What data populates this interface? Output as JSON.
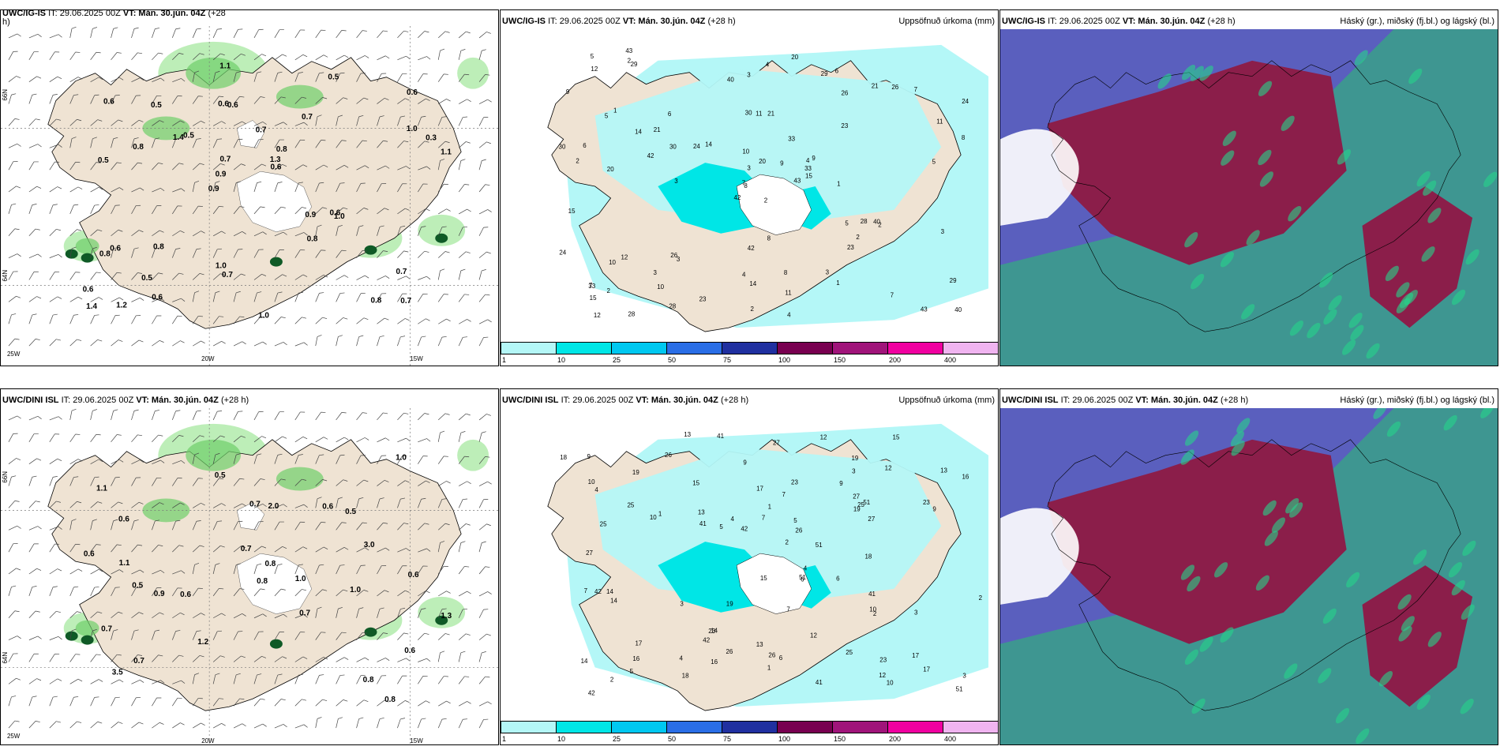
{
  "panels": {
    "top_left": {
      "title": "UWC/IG-IS",
      "it": "IT: 29.06.2025 00Z",
      "vt": "VT: Mán. 30.jún. 04Z",
      "lead": "(+28",
      "lead2": "h)"
    },
    "top_mid": {
      "title": "UWC/IG-IS",
      "it": "IT: 29.06.2025 00Z",
      "vt": "VT: Mán. 30.jún. 04Z",
      "lead": "(+28 h)",
      "right": "Uppsöfnuð úrkoma (mm)"
    },
    "top_right": {
      "title": "UWC/IG-IS",
      "it": "IT: 29.06.2025 00Z",
      "vt": "VT: Mán. 30.jún. 04Z",
      "lead": "(+28 h)",
      "right": "Háský (gr.), miðský (fj.bl.) og lágský (bl.)"
    },
    "bot_left": {
      "title": "UWC/DINI ISL",
      "it": "IT: 29.06.2025 00Z",
      "vt": "VT: Mán. 30.jún. 04Z",
      "lead": "(+28 h)"
    },
    "bot_mid": {
      "title": "UWC/DINI ISL",
      "it": "IT: 29.06.2025 00Z",
      "vt": "VT: Mán. 30.jún. 04Z",
      "lead": "(+28 h)",
      "right": "Uppsöfnuð úrkoma (mm)"
    },
    "bot_right": {
      "title": "UWC/DINI ISL",
      "it": "IT: 29.06.2025 00Z",
      "vt": "VT: Mán. 30.jún. 04Z",
      "lead": "(+28 h)",
      "right": "Háský (gr.), miðský (fj.bl.) og lágský (bl.)"
    }
  },
  "axis_labels": {
    "lat66": "66N",
    "lat64": "64N",
    "lon20": "20W",
    "lon15": "15W",
    "lon25": "25W"
  },
  "colorbar": {
    "ticks": [
      "1",
      "10",
      "25",
      "50",
      "75",
      "100",
      "150",
      "200",
      "400"
    ],
    "colors": [
      "#b4f7f7",
      "#00e6e6",
      "#00c8f0",
      "#2a6ee6",
      "#2030a0",
      "#780050",
      "#a0147a",
      "#f000a0",
      "#f0b4f0"
    ]
  },
  "top_left_values": [
    "0.7",
    "0.5",
    "0.6",
    "0.9",
    "0.7",
    "1.2",
    "0.6",
    "0.7",
    "0.6",
    "0.5",
    "0.6",
    "0.5",
    "0.6",
    "0.8",
    "1.0",
    "0.6",
    "1.1",
    "1.1",
    "0.9",
    "1.0",
    "0.9",
    "1.0",
    "0.7",
    "0.5",
    "0.5",
    "0.8",
    "0.8",
    "0.7",
    "0.6",
    "1.0",
    "1.4",
    "0.8",
    "0.8",
    "0.6",
    "0.3",
    "1.3",
    "1.4",
    "0.7",
    "0.6",
    "0.8"
  ],
  "top_mid_values": [
    "2",
    "5",
    "8",
    "7",
    "4",
    "3",
    "6",
    "21",
    "26",
    "43",
    "29",
    "40",
    "20",
    "24",
    "42",
    "23",
    "28",
    "30",
    "33",
    "12",
    "14",
    "15",
    "10",
    "11",
    "9",
    "2",
    "1",
    "3"
  ],
  "bot_left_values": [
    "0.8",
    "0.5",
    "0.7",
    "1.1",
    "0.6",
    "0.6",
    "0.7",
    "0.6",
    "0.5",
    "0.7",
    "0.6",
    "0.8",
    "1.2",
    "0.5",
    "1.0",
    "0.7",
    "1.0",
    "0.8",
    "0.6",
    "3.5",
    "1.0",
    "2.0",
    "3.0",
    "1.3",
    "0.6",
    "1.1",
    "0.9",
    "0.8",
    "0.7"
  ],
  "bot_mid_values": [
    "2",
    "3",
    "4",
    "7",
    "9",
    "12",
    "17",
    "19",
    "23",
    "42",
    "51",
    "41",
    "26",
    "27",
    "25",
    "13",
    "10",
    "14",
    "15",
    "16",
    "18",
    "5",
    "1",
    "6"
  ]
}
